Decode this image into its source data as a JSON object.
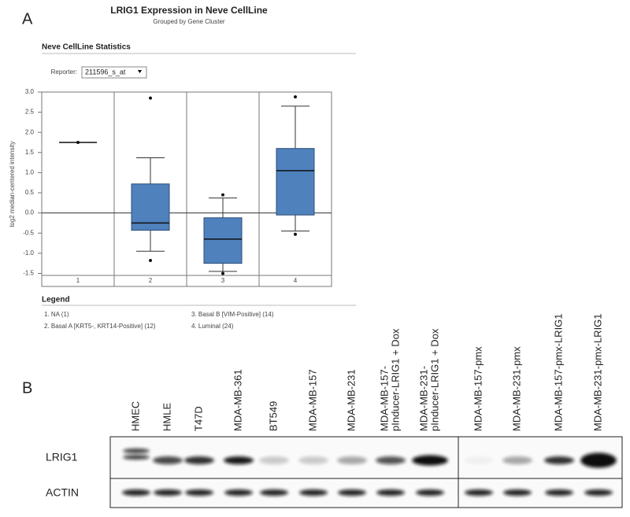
{
  "panel_a_label": "A",
  "panel_b_label": "B",
  "chart_data": {
    "type": "box",
    "title": "LRIG1 Expression in Neve CellLine",
    "subtitle": "Grouped by Gene Cluster",
    "section_title": "Neve CellLine Statistics",
    "reporter_label": "Reporter:",
    "reporter_value": "211596_s_at",
    "y_label": "log2 median-centered intensity",
    "categories": [
      "1",
      "2",
      "3",
      "4"
    ],
    "color": "#4f81bd",
    "boxes": [
      {
        "whisker_low": null,
        "q1": null,
        "median": 1.75,
        "q3": null,
        "whisker_high": null,
        "outliers": [
          1.75
        ]
      },
      {
        "whisker_low": -0.95,
        "q1": -0.43,
        "median": -0.25,
        "q3": 0.72,
        "whisker_high": 1.37,
        "outliers": [
          2.85,
          -1.18
        ]
      },
      {
        "whisker_low": -1.45,
        "q1": -1.25,
        "median": -0.65,
        "q3": -0.12,
        "whisker_high": 0.37,
        "outliers": [
          0.45,
          -1.5
        ]
      },
      {
        "whisker_low": -0.45,
        "q1": -0.05,
        "median": 1.05,
        "q3": 1.6,
        "whisker_high": 2.65,
        "outliers": [
          2.88,
          -0.53
        ]
      }
    ],
    "ylim": [
      -1.55,
      3.0
    ],
    "yticks": [
      {
        "value": 3,
        "label": "3.0"
      },
      2.5,
      {
        "value": 2,
        "label": "2.0"
      },
      1.5,
      {
        "value": 1,
        "label": "1.0"
      },
      0.5,
      {
        "value": 0,
        "label": "0.0"
      },
      -0.5,
      {
        "value": -1,
        "label": "-1.0"
      },
      -1.5
    ],
    "legend_title": "Legend",
    "legend_items": [
      "1. NA (1)",
      "2. Basal A [KRT5-, KRT14-Positive] (12)",
      "3. Basal B [VIM-Positive] (14)",
      "4. Luminal (24)"
    ]
  },
  "blot": {
    "lanes": [
      [
        "HMEC"
      ],
      [
        "HMLE"
      ],
      [
        "T47D"
      ],
      [
        "MDA-MB-361"
      ],
      [
        "BT549"
      ],
      [
        "MDA-MB-157"
      ],
      [
        "MDA-MB-231"
      ],
      [
        "MDA-MB-157-",
        "pInducer-LRIG1 + Dox"
      ],
      [
        "MDA-MB-231-",
        "pInducer-LRIG1 + Dox"
      ],
      [
        "MDA-MB-157-pmx"
      ],
      [
        "MDA-MB-231-pmx"
      ],
      [
        "MDA-MB-157-pmx-LRIG1"
      ],
      [
        "MDA-MB-231-pmx-LRIG1"
      ]
    ],
    "rows": [
      "LRIG1",
      "ACTIN"
    ]
  }
}
